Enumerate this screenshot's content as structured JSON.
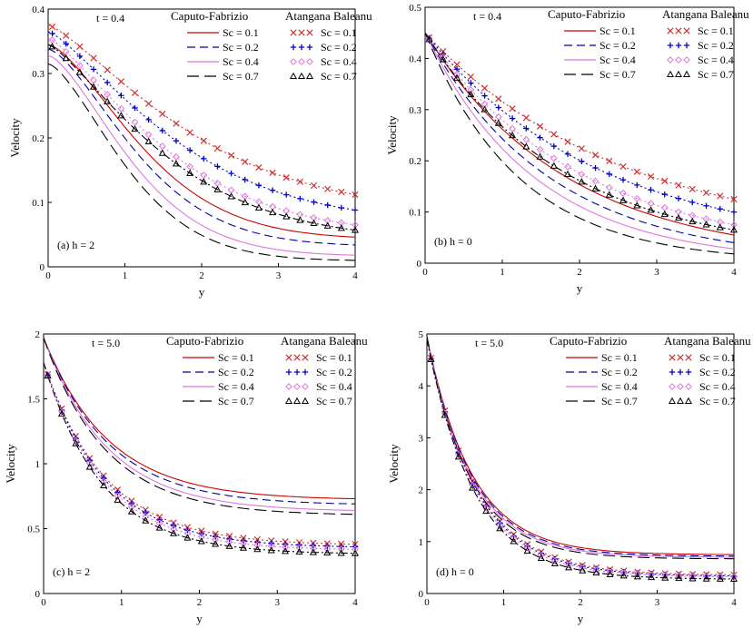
{
  "chart_data": [
    {
      "type": "line",
      "panel_label": "(a)  h = 2",
      "time_label": "t = 0.4",
      "xlabel": "y",
      "ylabel": "Velocity",
      "xlim": [
        0,
        4
      ],
      "ylim": [
        0,
        0.4
      ],
      "xticks": [
        "0",
        "1",
        "2",
        "3",
        "4"
      ],
      "yticks": [
        "0",
        "0.1",
        "0.2",
        "0.3",
        "0.4"
      ],
      "legend": {
        "left_title": "Caputo-Fabrizio",
        "right_title": "Atangana Baleanu",
        "cf_labels": [
          "Sc = 0.1",
          "Sc = 0.2",
          "Sc = 0.4",
          "Sc = 0.7"
        ],
        "ab_labels": [
          "Sc = 0.1",
          "Sc = 0.2",
          "Sc = 0.4",
          "Sc = 0.7"
        ]
      },
      "series": [
        {
          "name": "CF Sc = 0.1",
          "color": "#cc0000",
          "dash": "solid",
          "start": 0.345,
          "end": 0.046,
          "k": 0.55,
          "p": 1.5
        },
        {
          "name": "CF Sc = 0.2",
          "color": "#0000aa",
          "dash": "dash",
          "start": 0.338,
          "end": 0.034,
          "k": 0.6,
          "p": 1.5
        },
        {
          "name": "CF Sc = 0.4",
          "color": "#dd77dd",
          "dash": "solid",
          "start": 0.328,
          "end": 0.018,
          "k": 0.66,
          "p": 1.5
        },
        {
          "name": "CF Sc = 0.7",
          "color": "#000000",
          "dash": "longdash",
          "start": 0.315,
          "end": 0.01,
          "k": 0.72,
          "p": 1.5
        },
        {
          "name": "AB Sc = 0.1",
          "color": "#cc3333",
          "dash": "dot",
          "marker": "x",
          "start": 0.375,
          "end": 0.112,
          "k": 0.38,
          "p": 1.3
        },
        {
          "name": "AB Sc = 0.2",
          "color": "#0000cc",
          "dash": "dot",
          "marker": "+",
          "start": 0.365,
          "end": 0.088,
          "k": 0.43,
          "p": 1.3
        },
        {
          "name": "AB Sc = 0.4",
          "color": "#dd77dd",
          "dash": "dot",
          "marker": "diamond",
          "start": 0.355,
          "end": 0.065,
          "k": 0.47,
          "p": 1.3
        },
        {
          "name": "AB Sc = 0.7",
          "color": "#000000",
          "dash": "dashdot",
          "marker": "triangle",
          "start": 0.345,
          "end": 0.057,
          "k": 0.48,
          "p": 1.3
        }
      ]
    },
    {
      "type": "line",
      "panel_label": "(b)  h = 0",
      "time_label": "t = 0.4",
      "xlabel": "y",
      "ylabel": "Velocity",
      "xlim": [
        0,
        4
      ],
      "ylim": [
        0,
        0.5
      ],
      "xticks": [
        "0",
        "1",
        "2",
        "3",
        "4"
      ],
      "yticks": [
        "0",
        "0.1",
        "0.2",
        "0.3",
        "0.4",
        "0.5"
      ],
      "legend": {
        "left_title": "Caputo-Fabrizio",
        "right_title": "Atangana Baleanu",
        "cf_labels": [
          "Sc = 0.1",
          "Sc = 0.2",
          "Sc = 0.4",
          "Sc = 0.7"
        ],
        "ab_labels": [
          "Sc = 0.1",
          "Sc = 0.2",
          "Sc = 0.4",
          "Sc = 0.7"
        ]
      },
      "series": [
        {
          "name": "CF Sc = 0.1",
          "color": "#cc0000",
          "dash": "solid",
          "start": 0.45,
          "end": 0.055,
          "k": 0.55,
          "p": 1.0
        },
        {
          "name": "CF Sc = 0.2",
          "color": "#0000aa",
          "dash": "dash",
          "start": 0.45,
          "end": 0.04,
          "k": 0.62,
          "p": 1.0
        },
        {
          "name": "CF Sc = 0.4",
          "color": "#dd77dd",
          "dash": "solid",
          "start": 0.45,
          "end": 0.028,
          "k": 0.7,
          "p": 1.0
        },
        {
          "name": "CF Sc = 0.7",
          "color": "#000000",
          "dash": "longdash",
          "start": 0.45,
          "end": 0.018,
          "k": 0.82,
          "p": 1.0
        },
        {
          "name": "AB Sc = 0.1",
          "color": "#cc3333",
          "dash": "dot",
          "marker": "x",
          "start": 0.45,
          "end": 0.125,
          "k": 0.4,
          "p": 1.0
        },
        {
          "name": "AB Sc = 0.2",
          "color": "#0000cc",
          "dash": "dot",
          "marker": "+",
          "start": 0.45,
          "end": 0.1,
          "k": 0.45,
          "p": 1.0
        },
        {
          "name": "AB Sc = 0.4",
          "color": "#dd77dd",
          "dash": "dot",
          "marker": "diamond",
          "start": 0.45,
          "end": 0.075,
          "k": 0.5,
          "p": 1.0
        },
        {
          "name": "AB Sc = 0.7",
          "color": "#000000",
          "dash": "dashdot",
          "marker": "triangle",
          "start": 0.45,
          "end": 0.065,
          "k": 0.55,
          "p": 1.0
        }
      ]
    },
    {
      "type": "line",
      "panel_label": "(c)  h = 2",
      "time_label": "t = 5.0",
      "xlabel": "y",
      "ylabel": "Velocity",
      "xlim": [
        0,
        4
      ],
      "ylim": [
        0,
        2
      ],
      "xticks": [
        "0",
        "1",
        "2",
        "3",
        "4"
      ],
      "yticks": [
        "0",
        "0.5",
        "1",
        "1.5",
        "2"
      ],
      "legend": {
        "left_title": "Caputo-Fabrizio",
        "right_title": "Atangana Baleanu",
        "cf_labels": [
          "Sc = 0.1",
          "Sc = 0.2",
          "Sc = 0.4",
          "Sc = 0.7"
        ],
        "ab_labels": [
          "Sc = 0.1",
          "Sc = 0.2",
          "Sc = 0.4",
          "Sc = 0.7"
        ]
      },
      "series": [
        {
          "name": "CF Sc = 0.1",
          "color": "#cc0000",
          "dash": "solid",
          "start": 1.97,
          "end": 0.73,
          "k": 1.2,
          "p": 1.0
        },
        {
          "name": "CF Sc = 0.2",
          "color": "#0000aa",
          "dash": "dash",
          "start": 1.97,
          "end": 0.69,
          "k": 1.2,
          "p": 1.0
        },
        {
          "name": "CF Sc = 0.4",
          "color": "#dd77dd",
          "dash": "solid",
          "start": 1.97,
          "end": 0.64,
          "k": 1.22,
          "p": 1.0
        },
        {
          "name": "CF Sc = 0.7",
          "color": "#000000",
          "dash": "longdash",
          "start": 1.97,
          "end": 0.61,
          "k": 1.25,
          "p": 1.0
        },
        {
          "name": "AB Sc = 0.1",
          "color": "#cc3333",
          "dash": "dot",
          "marker": "x",
          "start": 1.78,
          "end": 0.38,
          "k": 1.25,
          "p": 1.0
        },
        {
          "name": "AB Sc = 0.2",
          "color": "#0000cc",
          "dash": "dot",
          "marker": "+",
          "start": 1.78,
          "end": 0.36,
          "k": 1.27,
          "p": 1.0
        },
        {
          "name": "AB Sc = 0.4",
          "color": "#dd77dd",
          "dash": "dot",
          "marker": "diamond",
          "start": 1.78,
          "end": 0.34,
          "k": 1.3,
          "p": 1.0
        },
        {
          "name": "AB Sc = 0.7",
          "color": "#000000",
          "dash": "dashdot",
          "marker": "triangle",
          "start": 1.78,
          "end": 0.31,
          "k": 1.33,
          "p": 1.0
        }
      ]
    },
    {
      "type": "line",
      "panel_label": "(d)  h = 0",
      "time_label": "t = 5.0",
      "xlabel": "y",
      "ylabel": "Velocity",
      "xlim": [
        0,
        4
      ],
      "ylim": [
        0,
        5
      ],
      "xticks": [
        "0",
        "1",
        "2",
        "3",
        "4"
      ],
      "yticks": [
        "0",
        "1",
        "2",
        "3",
        "4",
        "5"
      ],
      "legend": {
        "left_title": "Caputo-Fabrizio",
        "right_title": "Atangana Baleanu",
        "cf_labels": [
          "Sc = 0.1",
          "Sc = 0.2",
          "Sc = 0.4",
          "Sc = 0.7"
        ],
        "ab_labels": [
          "Sc = 0.1",
          "Sc = 0.2",
          "Sc = 0.4",
          "Sc = 0.7"
        ]
      },
      "series": [
        {
          "name": "CF Sc = 0.1",
          "color": "#cc0000",
          "dash": "solid",
          "start": 4.95,
          "end": 0.75,
          "k": 1.7,
          "p": 1.0
        },
        {
          "name": "CF Sc = 0.2",
          "color": "#0000aa",
          "dash": "dash",
          "start": 4.95,
          "end": 0.72,
          "k": 1.72,
          "p": 1.0
        },
        {
          "name": "CF Sc = 0.4",
          "color": "#dd77dd",
          "dash": "solid",
          "start": 4.95,
          "end": 0.7,
          "k": 1.75,
          "p": 1.0
        },
        {
          "name": "CF Sc = 0.7",
          "color": "#000000",
          "dash": "longdash",
          "start": 4.95,
          "end": 0.67,
          "k": 1.78,
          "p": 1.0
        },
        {
          "name": "AB Sc = 0.1",
          "color": "#cc3333",
          "dash": "dot",
          "marker": "x",
          "start": 4.9,
          "end": 0.36,
          "k": 1.55,
          "p": 1.0
        },
        {
          "name": "AB Sc = 0.2",
          "color": "#0000cc",
          "dash": "dot",
          "marker": "+",
          "start": 4.9,
          "end": 0.34,
          "k": 1.57,
          "p": 1.0
        },
        {
          "name": "AB Sc = 0.4",
          "color": "#dd77dd",
          "dash": "dot",
          "marker": "diamond",
          "start": 4.9,
          "end": 0.32,
          "k": 1.6,
          "p": 1.0
        },
        {
          "name": "AB Sc = 0.7",
          "color": "#000000",
          "dash": "dashdot",
          "marker": "triangle",
          "start": 4.9,
          "end": 0.28,
          "k": 1.63,
          "p": 1.0
        }
      ]
    }
  ]
}
